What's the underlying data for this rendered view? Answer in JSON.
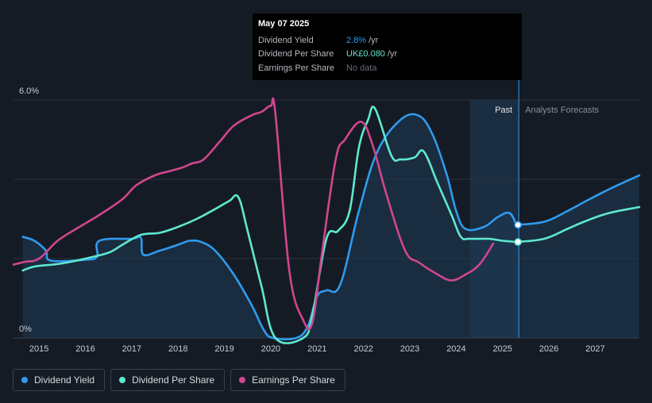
{
  "tooltip": {
    "date": "May 07 2025",
    "rows": [
      {
        "label": "Dividend Yield",
        "value": "2.8%",
        "unit": "/yr"
      },
      {
        "label": "Dividend Per Share",
        "value": "UK£0.080",
        "unit": "/yr"
      },
      {
        "label": "Earnings Per Share",
        "value": "No data"
      }
    ]
  },
  "legend": [
    {
      "label": "Dividend Yield",
      "color": "#2f9bef"
    },
    {
      "label": "Dividend Per Share",
      "color": "#5ee8d0"
    },
    {
      "label": "Earnings Per Share",
      "color": "#d0468f"
    }
  ],
  "colors": {
    "background": "#151b24",
    "grid": "#2b323d",
    "yield": "#2f9bef",
    "dps": "#5ee8d0",
    "eps": "#d0468f",
    "past_shade": "#1b3047"
  },
  "chart_data": {
    "type": "line",
    "y_labels": {
      "top": "6.0%",
      "bottom": "0%"
    },
    "ylim": [
      0,
      6
    ],
    "xlim": [
      2014.45,
      2027.95
    ],
    "x_ticks": [
      2015,
      2016,
      2017,
      2018,
      2019,
      2020,
      2021,
      2022,
      2023,
      2024,
      2025,
      2026,
      2027
    ],
    "past_label": "Past",
    "forecast_label": "Analysts Forecasts",
    "past_region_start": 2024.3,
    "divider_x": 2025.35,
    "series": [
      {
        "name": "Dividend Yield",
        "key": "yield",
        "unit": "%",
        "points": [
          [
            2014.65,
            2.55
          ],
          [
            2014.9,
            2.45
          ],
          [
            2015.15,
            2.2
          ],
          [
            2015.25,
            1.95
          ],
          [
            2016.0,
            1.97
          ],
          [
            2016.25,
            2.05
          ],
          [
            2016.3,
            2.45
          ],
          [
            2017.0,
            2.5
          ],
          [
            2017.2,
            2.52
          ],
          [
            2017.25,
            2.1
          ],
          [
            2017.6,
            2.2
          ],
          [
            2018.0,
            2.35
          ],
          [
            2018.25,
            2.45
          ],
          [
            2018.5,
            2.42
          ],
          [
            2018.8,
            2.2
          ],
          [
            2019.2,
            1.6
          ],
          [
            2019.6,
            0.8
          ],
          [
            2019.85,
            0.2
          ],
          [
            2020.05,
            0
          ],
          [
            2020.55,
            0
          ],
          [
            2020.8,
            0.3
          ],
          [
            2021.0,
            1.05
          ],
          [
            2021.2,
            1.2
          ],
          [
            2021.5,
            1.35
          ],
          [
            2021.9,
            3.2
          ],
          [
            2022.3,
            4.7
          ],
          [
            2022.8,
            5.5
          ],
          [
            2023.2,
            5.6
          ],
          [
            2023.5,
            5.1
          ],
          [
            2023.8,
            4.1
          ],
          [
            2024.0,
            3.2
          ],
          [
            2024.2,
            2.75
          ],
          [
            2024.6,
            2.8
          ],
          [
            2024.9,
            3.05
          ],
          [
            2025.15,
            3.15
          ],
          [
            2025.3,
            2.85
          ]
        ]
      },
      {
        "name": "Dividend Yield Forecast",
        "key": "yield",
        "unit": "%",
        "dashed": false,
        "points": [
          [
            2025.3,
            2.85
          ],
          [
            2025.9,
            2.93
          ],
          [
            2026.4,
            3.2
          ],
          [
            2026.8,
            3.45
          ],
          [
            2027.3,
            3.75
          ],
          [
            2027.95,
            4.1
          ]
        ]
      },
      {
        "name": "Dividend Per Share",
        "key": "dps",
        "unit": "relative",
        "points": [
          [
            2014.65,
            1.7
          ],
          [
            2014.9,
            1.8
          ],
          [
            2015.3,
            1.85
          ],
          [
            2015.6,
            1.9
          ],
          [
            2016.0,
            2.0
          ],
          [
            2016.5,
            2.15
          ],
          [
            2016.8,
            2.35
          ],
          [
            2017.2,
            2.6
          ],
          [
            2017.6,
            2.65
          ],
          [
            2018.0,
            2.8
          ],
          [
            2018.4,
            3.0
          ],
          [
            2018.8,
            3.25
          ],
          [
            2019.1,
            3.45
          ],
          [
            2019.3,
            3.55
          ],
          [
            2019.5,
            2.7
          ],
          [
            2019.8,
            1.3
          ],
          [
            2020.1,
            0
          ],
          [
            2020.7,
            0
          ],
          [
            2020.9,
            0.6
          ],
          [
            2021.2,
            2.5
          ],
          [
            2021.45,
            2.7
          ],
          [
            2021.7,
            3.2
          ],
          [
            2021.9,
            4.8
          ],
          [
            2022.1,
            5.5
          ],
          [
            2022.25,
            5.78
          ],
          [
            2022.6,
            4.6
          ],
          [
            2022.8,
            4.5
          ],
          [
            2023.1,
            4.55
          ],
          [
            2023.3,
            4.7
          ],
          [
            2023.6,
            3.9
          ],
          [
            2023.9,
            3.1
          ],
          [
            2024.1,
            2.55
          ],
          [
            2024.3,
            2.5
          ],
          [
            2024.7,
            2.5
          ],
          [
            2025.0,
            2.45
          ],
          [
            2025.3,
            2.42
          ]
        ]
      },
      {
        "name": "Dividend Per Share Forecast",
        "key": "dps",
        "unit": "relative",
        "points": [
          [
            2025.3,
            2.42
          ],
          [
            2025.9,
            2.5
          ],
          [
            2026.4,
            2.75
          ],
          [
            2026.8,
            2.95
          ],
          [
            2027.3,
            3.15
          ],
          [
            2027.95,
            3.3
          ]
        ]
      },
      {
        "name": "Earnings Per Share",
        "key": "eps",
        "unit": "relative",
        "points": [
          [
            2014.45,
            1.85
          ],
          [
            2014.7,
            1.92
          ],
          [
            2015.0,
            2.0
          ],
          [
            2015.4,
            2.45
          ],
          [
            2015.8,
            2.75
          ],
          [
            2016.3,
            3.1
          ],
          [
            2016.8,
            3.5
          ],
          [
            2017.1,
            3.85
          ],
          [
            2017.5,
            4.1
          ],
          [
            2017.8,
            4.2
          ],
          [
            2018.1,
            4.3
          ],
          [
            2018.3,
            4.4
          ],
          [
            2018.55,
            4.5
          ],
          [
            2018.9,
            4.95
          ],
          [
            2019.2,
            5.35
          ],
          [
            2019.6,
            5.62
          ],
          [
            2019.8,
            5.7
          ],
          [
            2020.0,
            5.85
          ],
          [
            2020.1,
            5.65
          ],
          [
            2020.4,
            1.7
          ],
          [
            2020.7,
            0.45
          ],
          [
            2020.9,
            0.4
          ],
          [
            2021.1,
            2.1
          ],
          [
            2021.4,
            4.5
          ],
          [
            2021.6,
            5.0
          ],
          [
            2021.95,
            5.45
          ],
          [
            2022.2,
            4.85
          ],
          [
            2022.5,
            3.6
          ],
          [
            2022.9,
            2.2
          ],
          [
            2023.2,
            1.9
          ],
          [
            2023.6,
            1.6
          ],
          [
            2023.9,
            1.45
          ],
          [
            2024.2,
            1.6
          ],
          [
            2024.5,
            1.85
          ],
          [
            2024.8,
            2.38
          ]
        ]
      }
    ]
  }
}
